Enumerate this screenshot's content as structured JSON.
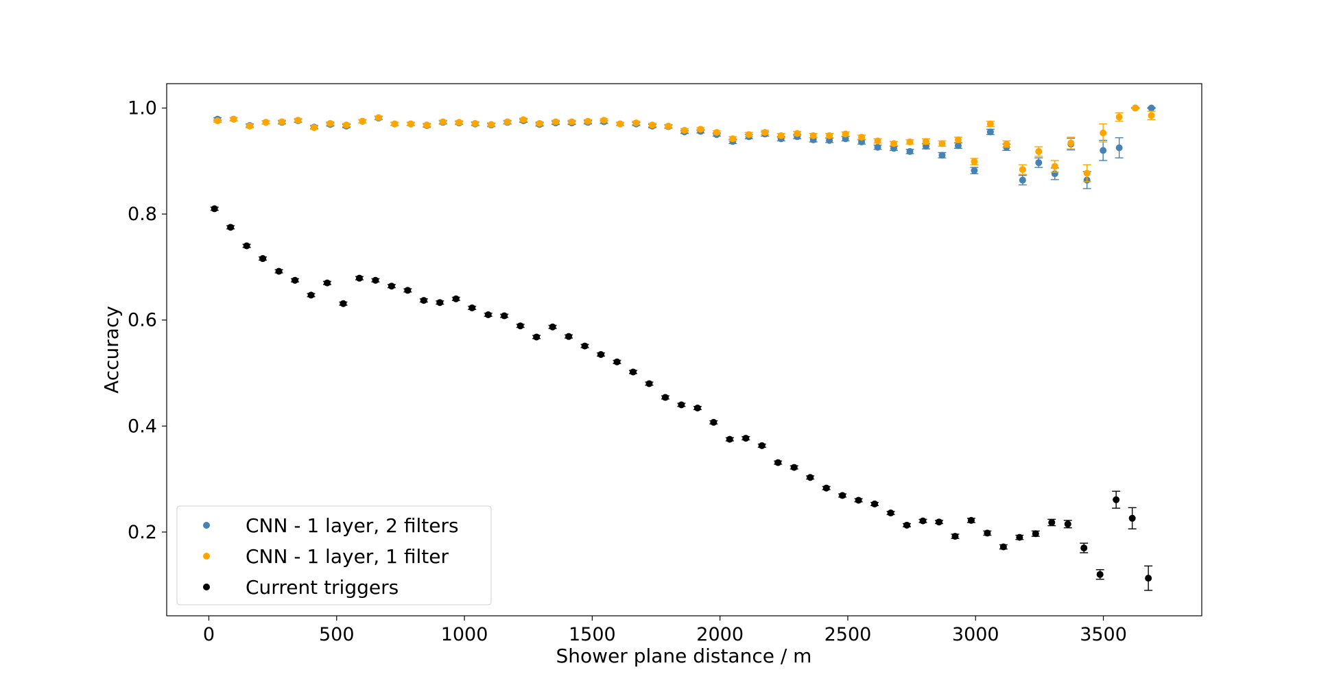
{
  "chart_data": {
    "type": "scatter",
    "xlabel": "Shower plane distance / m",
    "ylabel": "Accuracy",
    "xlim": [
      -165,
      3885
    ],
    "ylim": [
      0.042,
      1.046
    ],
    "xticks": [
      0,
      500,
      1000,
      1500,
      2000,
      2500,
      3000,
      3500
    ],
    "yticks": [
      0.2,
      0.4,
      0.6,
      0.8,
      1.0
    ],
    "xtick_labels": [
      "0",
      "500",
      "1000",
      "1500",
      "2000",
      "2500",
      "3000",
      "3500"
    ],
    "ytick_labels": [
      "0.2",
      "0.4",
      "0.6",
      "0.8",
      "1.0"
    ],
    "grid": false,
    "legend_position": "lower-left",
    "series": [
      {
        "name": "CNN - 1 layer, 2 filters",
        "color": "#4682b4",
        "points": [
          [
            34,
            0.979,
            0.003
          ],
          [
            97,
            0.979,
            0.003
          ],
          [
            160,
            0.967,
            0.003
          ],
          [
            223,
            0.973,
            0.003
          ],
          [
            286,
            0.973,
            0.003
          ],
          [
            349,
            0.976,
            0.003
          ],
          [
            412,
            0.964,
            0.003
          ],
          [
            475,
            0.969,
            0.003
          ],
          [
            538,
            0.966,
            0.003
          ],
          [
            601,
            0.975,
            0.003
          ],
          [
            664,
            0.981,
            0.003
          ],
          [
            727,
            0.97,
            0.003
          ],
          [
            790,
            0.97,
            0.003
          ],
          [
            853,
            0.967,
            0.003
          ],
          [
            916,
            0.973,
            0.003
          ],
          [
            979,
            0.972,
            0.003
          ],
          [
            1042,
            0.97,
            0.003
          ],
          [
            1105,
            0.968,
            0.003
          ],
          [
            1168,
            0.973,
            0.003
          ],
          [
            1231,
            0.976,
            0.003
          ],
          [
            1294,
            0.969,
            0.003
          ],
          [
            1357,
            0.972,
            0.003
          ],
          [
            1420,
            0.972,
            0.003
          ],
          [
            1483,
            0.973,
            0.003
          ],
          [
            1546,
            0.974,
            0.003
          ],
          [
            1609,
            0.97,
            0.003
          ],
          [
            1672,
            0.97,
            0.003
          ],
          [
            1735,
            0.966,
            0.003
          ],
          [
            1798,
            0.965,
            0.003
          ],
          [
            1861,
            0.955,
            0.003
          ],
          [
            1924,
            0.956,
            0.003
          ],
          [
            1987,
            0.95,
            0.003
          ],
          [
            2050,
            0.937,
            0.004
          ],
          [
            2113,
            0.946,
            0.004
          ],
          [
            2176,
            0.951,
            0.004
          ],
          [
            2239,
            0.942,
            0.004
          ],
          [
            2302,
            0.946,
            0.004
          ],
          [
            2365,
            0.94,
            0.004
          ],
          [
            2428,
            0.939,
            0.004
          ],
          [
            2491,
            0.942,
            0.004
          ],
          [
            2554,
            0.936,
            0.004
          ],
          [
            2617,
            0.926,
            0.004
          ],
          [
            2680,
            0.924,
            0.004
          ],
          [
            2743,
            0.918,
            0.004
          ],
          [
            2806,
            0.928,
            0.005
          ],
          [
            2869,
            0.911,
            0.005
          ],
          [
            2932,
            0.929,
            0.005
          ],
          [
            2995,
            0.882,
            0.006
          ],
          [
            3058,
            0.955,
            0.005
          ],
          [
            3121,
            0.926,
            0.006
          ],
          [
            3184,
            0.864,
            0.009
          ],
          [
            3247,
            0.897,
            0.009
          ],
          [
            3310,
            0.876,
            0.011
          ],
          [
            3373,
            0.932,
            0.011
          ],
          [
            3436,
            0.864,
            0.016
          ],
          [
            3499,
            0.92,
            0.019
          ],
          [
            3562,
            0.925,
            0.019
          ],
          [
            3625,
            1.0,
            0.001
          ],
          [
            3688,
            1.0,
            0.001
          ]
        ]
      },
      {
        "name": "CNN - 1 layer, 1 filter",
        "color": "#ffa500",
        "points": [
          [
            34,
            0.976,
            0.003
          ],
          [
            97,
            0.979,
            0.003
          ],
          [
            160,
            0.966,
            0.003
          ],
          [
            223,
            0.973,
            0.003
          ],
          [
            286,
            0.974,
            0.003
          ],
          [
            349,
            0.977,
            0.003
          ],
          [
            412,
            0.963,
            0.003
          ],
          [
            475,
            0.971,
            0.003
          ],
          [
            538,
            0.968,
            0.003
          ],
          [
            601,
            0.975,
            0.003
          ],
          [
            664,
            0.982,
            0.003
          ],
          [
            727,
            0.97,
            0.003
          ],
          [
            790,
            0.97,
            0.003
          ],
          [
            853,
            0.968,
            0.003
          ],
          [
            916,
            0.974,
            0.003
          ],
          [
            979,
            0.973,
            0.003
          ],
          [
            1042,
            0.971,
            0.003
          ],
          [
            1105,
            0.969,
            0.003
          ],
          [
            1168,
            0.974,
            0.003
          ],
          [
            1231,
            0.978,
            0.003
          ],
          [
            1294,
            0.971,
            0.003
          ],
          [
            1357,
            0.974,
            0.003
          ],
          [
            1420,
            0.974,
            0.003
          ],
          [
            1483,
            0.975,
            0.003
          ],
          [
            1546,
            0.977,
            0.003
          ],
          [
            1609,
            0.97,
            0.003
          ],
          [
            1672,
            0.972,
            0.003
          ],
          [
            1735,
            0.968,
            0.003
          ],
          [
            1798,
            0.966,
            0.003
          ],
          [
            1861,
            0.958,
            0.003
          ],
          [
            1924,
            0.96,
            0.003
          ],
          [
            1987,
            0.954,
            0.003
          ],
          [
            2050,
            0.942,
            0.004
          ],
          [
            2113,
            0.95,
            0.004
          ],
          [
            2176,
            0.954,
            0.004
          ],
          [
            2239,
            0.948,
            0.004
          ],
          [
            2302,
            0.952,
            0.004
          ],
          [
            2365,
            0.948,
            0.004
          ],
          [
            2428,
            0.948,
            0.004
          ],
          [
            2491,
            0.951,
            0.004
          ],
          [
            2554,
            0.945,
            0.004
          ],
          [
            2617,
            0.938,
            0.004
          ],
          [
            2680,
            0.933,
            0.004
          ],
          [
            2743,
            0.936,
            0.004
          ],
          [
            2806,
            0.937,
            0.005
          ],
          [
            2869,
            0.933,
            0.005
          ],
          [
            2932,
            0.94,
            0.005
          ],
          [
            2995,
            0.899,
            0.006
          ],
          [
            3058,
            0.97,
            0.005
          ],
          [
            3121,
            0.932,
            0.006
          ],
          [
            3184,
            0.884,
            0.009
          ],
          [
            3247,
            0.918,
            0.009
          ],
          [
            3310,
            0.89,
            0.011
          ],
          [
            3373,
            0.934,
            0.011
          ],
          [
            3436,
            0.877,
            0.016
          ],
          [
            3499,
            0.953,
            0.017
          ],
          [
            3562,
            0.983,
            0.008
          ],
          [
            3625,
            1.0,
            0.001
          ],
          [
            3688,
            0.986,
            0.008
          ]
        ]
      },
      {
        "name": "Current triggers",
        "color": "#000000",
        "points": [
          [
            22,
            0.81,
            0.003
          ],
          [
            85,
            0.775,
            0.003
          ],
          [
            148,
            0.74,
            0.003
          ],
          [
            211,
            0.716,
            0.003
          ],
          [
            274,
            0.692,
            0.003
          ],
          [
            337,
            0.675,
            0.003
          ],
          [
            400,
            0.647,
            0.003
          ],
          [
            463,
            0.67,
            0.003
          ],
          [
            526,
            0.631,
            0.003
          ],
          [
            589,
            0.679,
            0.003
          ],
          [
            652,
            0.675,
            0.003
          ],
          [
            715,
            0.664,
            0.003
          ],
          [
            778,
            0.656,
            0.003
          ],
          [
            841,
            0.637,
            0.003
          ],
          [
            904,
            0.633,
            0.003
          ],
          [
            967,
            0.64,
            0.003
          ],
          [
            1030,
            0.623,
            0.003
          ],
          [
            1093,
            0.61,
            0.003
          ],
          [
            1156,
            0.608,
            0.003
          ],
          [
            1219,
            0.589,
            0.003
          ],
          [
            1282,
            0.568,
            0.003
          ],
          [
            1345,
            0.587,
            0.003
          ],
          [
            1408,
            0.569,
            0.003
          ],
          [
            1471,
            0.551,
            0.003
          ],
          [
            1534,
            0.535,
            0.003
          ],
          [
            1597,
            0.521,
            0.003
          ],
          [
            1660,
            0.502,
            0.003
          ],
          [
            1723,
            0.48,
            0.003
          ],
          [
            1786,
            0.454,
            0.003
          ],
          [
            1849,
            0.44,
            0.003
          ],
          [
            1912,
            0.434,
            0.003
          ],
          [
            1975,
            0.407,
            0.003
          ],
          [
            2038,
            0.375,
            0.003
          ],
          [
            2101,
            0.377,
            0.003
          ],
          [
            2164,
            0.363,
            0.003
          ],
          [
            2227,
            0.331,
            0.003
          ],
          [
            2290,
            0.322,
            0.003
          ],
          [
            2353,
            0.303,
            0.003
          ],
          [
            2416,
            0.283,
            0.003
          ],
          [
            2479,
            0.269,
            0.003
          ],
          [
            2542,
            0.26,
            0.003
          ],
          [
            2605,
            0.253,
            0.003
          ],
          [
            2668,
            0.236,
            0.003
          ],
          [
            2731,
            0.213,
            0.003
          ],
          [
            2794,
            0.221,
            0.003
          ],
          [
            2857,
            0.219,
            0.003
          ],
          [
            2920,
            0.192,
            0.004
          ],
          [
            2983,
            0.222,
            0.004
          ],
          [
            3046,
            0.198,
            0.004
          ],
          [
            3109,
            0.172,
            0.004
          ],
          [
            3172,
            0.19,
            0.004
          ],
          [
            3235,
            0.197,
            0.005
          ],
          [
            3298,
            0.218,
            0.006
          ],
          [
            3361,
            0.215,
            0.007
          ],
          [
            3424,
            0.17,
            0.009
          ],
          [
            3487,
            0.12,
            0.009
          ],
          [
            3550,
            0.261,
            0.016
          ],
          [
            3613,
            0.226,
            0.02
          ],
          [
            3676,
            0.113,
            0.023
          ]
        ]
      }
    ]
  }
}
